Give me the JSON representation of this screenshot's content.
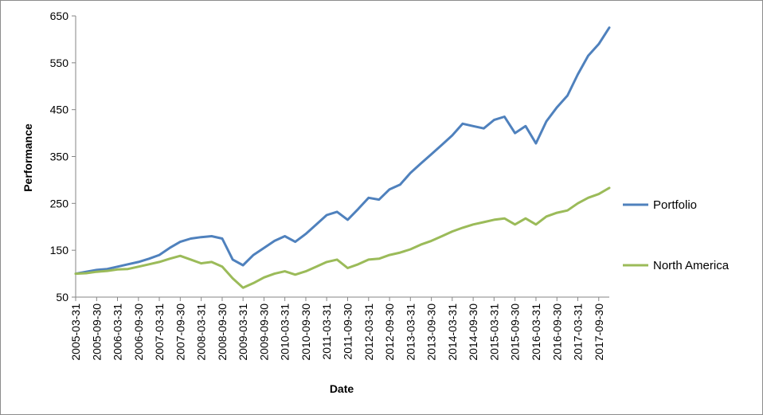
{
  "chart_data": {
    "type": "line",
    "title": "",
    "xlabel": "Date",
    "ylabel": "Performance",
    "ylim": [
      50,
      650
    ],
    "yticks": [
      50,
      150,
      250,
      350,
      450,
      550,
      650
    ],
    "xlim": [
      "2005-03-31",
      "2017-12-31"
    ],
    "xticks": [
      "2005-03-31",
      "2005-09-30",
      "2006-03-31",
      "2006-09-30",
      "2007-03-31",
      "2007-09-30",
      "2008-03-31",
      "2008-09-30",
      "2009-03-31",
      "2009-09-30",
      "2010-03-31",
      "2010-09-30",
      "2011-03-31",
      "2011-09-30",
      "2012-03-31",
      "2012-09-30",
      "2013-03-31",
      "2013-09-30",
      "2014-03-31",
      "2014-09-30",
      "2015-03-31",
      "2015-09-30",
      "2016-03-31",
      "2016-09-30",
      "2017-03-31",
      "2017-09-30"
    ],
    "grid": false,
    "legend": "right",
    "series": [
      {
        "name": "Portfolio",
        "color": "#4f81bd",
        "points": [
          [
            "2005-03-31",
            100
          ],
          [
            "2005-06-30",
            104
          ],
          [
            "2005-09-30",
            108
          ],
          [
            "2005-12-31",
            110
          ],
          [
            "2006-03-31",
            115
          ],
          [
            "2006-06-30",
            120
          ],
          [
            "2006-09-30",
            125
          ],
          [
            "2006-12-31",
            132
          ],
          [
            "2007-03-31",
            140
          ],
          [
            "2007-06-30",
            155
          ],
          [
            "2007-09-30",
            168
          ],
          [
            "2007-12-31",
            175
          ],
          [
            "2008-03-31",
            178
          ],
          [
            "2008-06-30",
            180
          ],
          [
            "2008-09-30",
            175
          ],
          [
            "2008-12-31",
            130
          ],
          [
            "2009-03-31",
            118
          ],
          [
            "2009-06-30",
            140
          ],
          [
            "2009-09-30",
            155
          ],
          [
            "2009-12-31",
            170
          ],
          [
            "2010-03-31",
            180
          ],
          [
            "2010-06-30",
            168
          ],
          [
            "2010-09-30",
            185
          ],
          [
            "2010-12-31",
            205
          ],
          [
            "2011-03-31",
            225
          ],
          [
            "2011-06-30",
            232
          ],
          [
            "2011-09-30",
            215
          ],
          [
            "2011-12-31",
            238
          ],
          [
            "2012-03-31",
            262
          ],
          [
            "2012-06-30",
            258
          ],
          [
            "2012-09-30",
            280
          ],
          [
            "2012-12-31",
            290
          ],
          [
            "2013-03-31",
            315
          ],
          [
            "2013-06-30",
            335
          ],
          [
            "2013-09-30",
            355
          ],
          [
            "2013-12-31",
            375
          ],
          [
            "2014-03-31",
            395
          ],
          [
            "2014-06-30",
            420
          ],
          [
            "2014-09-30",
            415
          ],
          [
            "2014-12-31",
            410
          ],
          [
            "2015-03-31",
            428
          ],
          [
            "2015-06-30",
            435
          ],
          [
            "2015-09-30",
            400
          ],
          [
            "2015-12-31",
            415
          ],
          [
            "2016-03-31",
            378
          ],
          [
            "2016-06-30",
            425
          ],
          [
            "2016-09-30",
            455
          ],
          [
            "2016-12-31",
            480
          ],
          [
            "2017-03-31",
            525
          ],
          [
            "2017-06-30",
            565
          ],
          [
            "2017-09-30",
            590
          ],
          [
            "2017-12-31",
            625
          ]
        ]
      },
      {
        "name": "North America",
        "color": "#9bbb59",
        "points": [
          [
            "2005-03-31",
            100
          ],
          [
            "2005-06-30",
            101
          ],
          [
            "2005-09-30",
            104
          ],
          [
            "2005-12-31",
            106
          ],
          [
            "2006-03-31",
            109
          ],
          [
            "2006-06-30",
            110
          ],
          [
            "2006-09-30",
            115
          ],
          [
            "2006-12-31",
            120
          ],
          [
            "2007-03-31",
            125
          ],
          [
            "2007-06-30",
            132
          ],
          [
            "2007-09-30",
            138
          ],
          [
            "2007-12-31",
            130
          ],
          [
            "2008-03-31",
            122
          ],
          [
            "2008-06-30",
            125
          ],
          [
            "2008-09-30",
            115
          ],
          [
            "2008-12-31",
            90
          ],
          [
            "2009-03-31",
            70
          ],
          [
            "2009-06-30",
            80
          ],
          [
            "2009-09-30",
            92
          ],
          [
            "2009-12-31",
            100
          ],
          [
            "2010-03-31",
            105
          ],
          [
            "2010-06-30",
            98
          ],
          [
            "2010-09-30",
            105
          ],
          [
            "2010-12-31",
            115
          ],
          [
            "2011-03-31",
            125
          ],
          [
            "2011-06-30",
            130
          ],
          [
            "2011-09-30",
            112
          ],
          [
            "2011-12-31",
            120
          ],
          [
            "2012-03-31",
            130
          ],
          [
            "2012-06-30",
            132
          ],
          [
            "2012-09-30",
            140
          ],
          [
            "2012-12-31",
            145
          ],
          [
            "2013-03-31",
            152
          ],
          [
            "2013-06-30",
            162
          ],
          [
            "2013-09-30",
            170
          ],
          [
            "2013-12-31",
            180
          ],
          [
            "2014-03-31",
            190
          ],
          [
            "2014-06-30",
            198
          ],
          [
            "2014-09-30",
            205
          ],
          [
            "2014-12-31",
            210
          ],
          [
            "2015-03-31",
            215
          ],
          [
            "2015-06-30",
            218
          ],
          [
            "2015-09-30",
            205
          ],
          [
            "2015-12-31",
            218
          ],
          [
            "2016-03-31",
            205
          ],
          [
            "2016-06-30",
            222
          ],
          [
            "2016-09-30",
            230
          ],
          [
            "2016-12-31",
            235
          ],
          [
            "2017-03-31",
            250
          ],
          [
            "2017-06-30",
            262
          ],
          [
            "2017-09-30",
            270
          ],
          [
            "2017-12-31",
            283
          ]
        ]
      }
    ]
  }
}
